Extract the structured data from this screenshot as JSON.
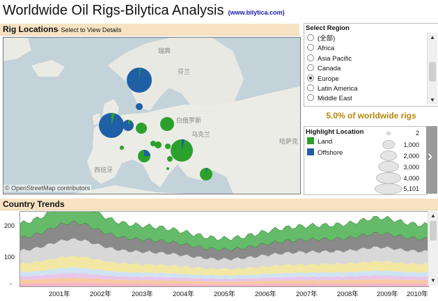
{
  "header": {
    "title": "Worldwide Oil Rigs-Bilytica Analysis",
    "link": "(www.bilytica.com)"
  },
  "map_section": {
    "title": "Rig Locations",
    "subtitle": "- Select to View Details",
    "credit": "© OpenStreetMap contributors",
    "labels": [
      "瑞典",
      "芬兰",
      "白俄罗斯",
      "乌克兰",
      "哈萨克",
      "西班牙"
    ]
  },
  "region_filter": {
    "title": "Select Region",
    "options": [
      "(全部)",
      "Africa",
      "Asia Pacific",
      "Canada",
      "Europe",
      "Latin America",
      "Middle East"
    ],
    "selected": "Europe"
  },
  "share": {
    "text": "5.0% of worldwide rigs"
  },
  "highlight": {
    "title": "Highlight Location",
    "items": [
      {
        "label": "Land",
        "color": "#2ca02c"
      },
      {
        "label": "Offshore",
        "color": "#1f5fa6"
      }
    ],
    "sizes": [
      "2",
      "1,000",
      "2,000",
      "3,000",
      "4,000",
      "5,101"
    ]
  },
  "trends": {
    "title": "Country Trends",
    "y_ticks": [
      "200",
      "100",
      "-"
    ],
    "x_ticks": [
      "2001年",
      "2002年",
      "2003年",
      "2004年",
      "2005年",
      "2006年",
      "2007年",
      "2008年",
      "2009年",
      "2010年"
    ]
  },
  "colors": {
    "land": "#2ca02c",
    "offshore": "#1f5fa6",
    "accent": "#b8860b",
    "header_bg": "#f7e3c3"
  }
}
